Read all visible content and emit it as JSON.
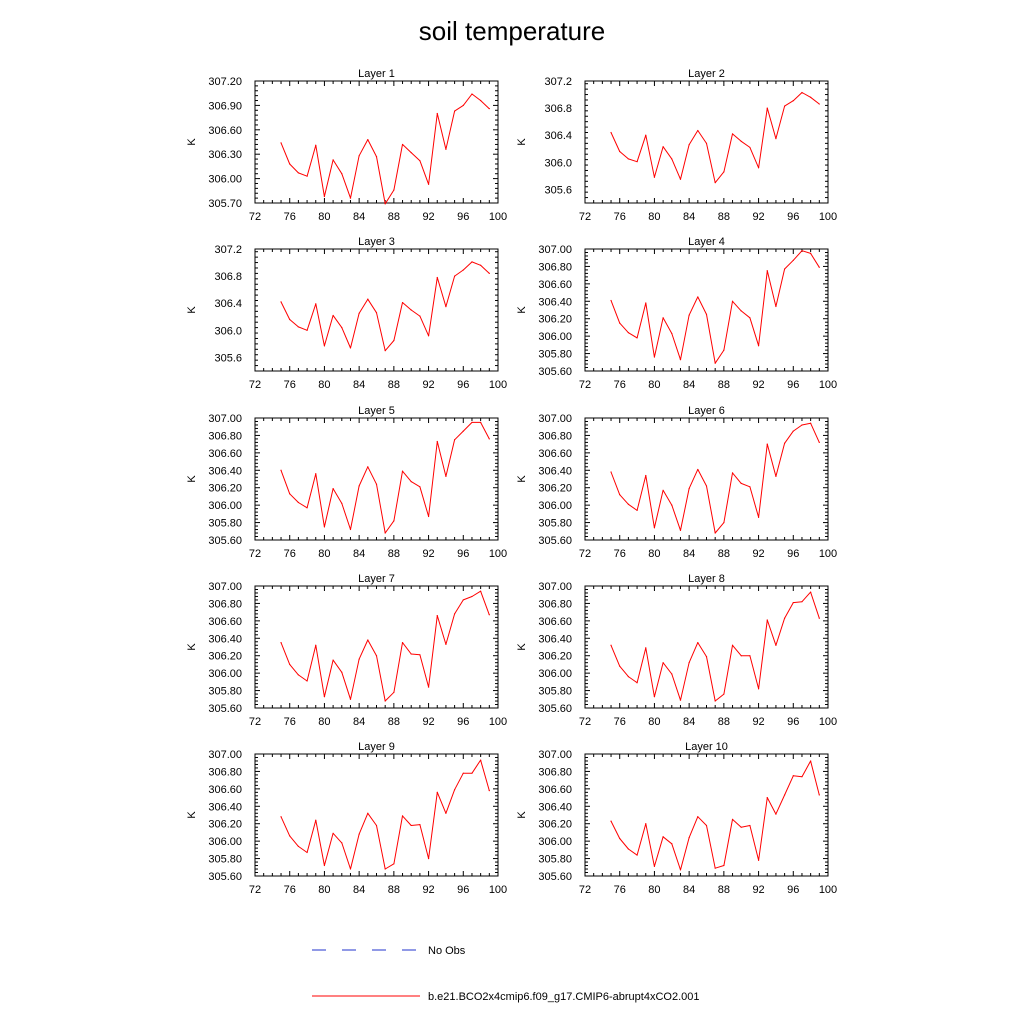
{
  "title": "soil temperature",
  "chart_data": [
    {
      "type": "line",
      "title": "Layer 1",
      "ylabel": "K",
      "xlim": [
        72,
        100
      ],
      "ylim": [
        305.7,
        307.2
      ],
      "yticks": [
        "305.70",
        "306.00",
        "306.30",
        "306.60",
        "306.90",
        "307.20"
      ],
      "xticks": [
        "72",
        "76",
        "80",
        "84",
        "88",
        "92",
        "96",
        "100"
      ],
      "series": [
        {
          "name": "b.e21.BCO2x4cmip6.f09_g17.CMIP6-abrupt4xCO2.001",
          "color": "#ff0000",
          "x": [
            75,
            76,
            77,
            78,
            79,
            80,
            81,
            82,
            83,
            84,
            85,
            86,
            87,
            88,
            89,
            90,
            91,
            92,
            93,
            94,
            95,
            96,
            97,
            98,
            99
          ],
          "y": [
            306.44,
            306.18,
            306.07,
            306.03,
            306.41,
            305.78,
            306.23,
            306.06,
            305.76,
            306.28,
            306.48,
            306.27,
            305.69,
            305.86,
            306.42,
            306.32,
            306.22,
            305.93,
            306.8,
            306.36,
            306.83,
            306.9,
            307.04,
            306.96,
            306.86
          ]
        }
      ]
    },
    {
      "type": "line",
      "title": "Layer 2",
      "ylabel": "K",
      "xlim": [
        72,
        100
      ],
      "ylim": [
        305.4,
        307.2
      ],
      "yticks": [
        "305.6",
        "306.0",
        "306.4",
        "306.8",
        "307.2"
      ],
      "xticks": [
        "72",
        "76",
        "80",
        "84",
        "88",
        "92",
        "96",
        "100"
      ],
      "series": [
        {
          "name": "b.e21.BCO2x4cmip6.f09_g17.CMIP6-abrupt4xCO2.001",
          "color": "#ff0000",
          "x": [
            75,
            76,
            77,
            78,
            79,
            80,
            81,
            82,
            83,
            84,
            85,
            86,
            87,
            88,
            89,
            90,
            91,
            92,
            93,
            94,
            95,
            96,
            97,
            98,
            99
          ],
          "y": [
            306.44,
            306.16,
            306.05,
            306.01,
            306.4,
            305.78,
            306.23,
            306.05,
            305.75,
            306.26,
            306.47,
            306.28,
            305.7,
            305.86,
            306.42,
            306.31,
            306.22,
            305.92,
            306.8,
            306.35,
            306.83,
            306.91,
            307.03,
            306.96,
            306.86
          ]
        }
      ]
    },
    {
      "type": "line",
      "title": "Layer 3",
      "ylabel": "K",
      "xlim": [
        72,
        100
      ],
      "ylim": [
        305.4,
        307.2
      ],
      "yticks": [
        "305.6",
        "306.0",
        "306.4",
        "306.8",
        "307.2"
      ],
      "xticks": [
        "72",
        "76",
        "80",
        "84",
        "88",
        "92",
        "96",
        "100"
      ],
      "series": [
        {
          "name": "b.e21.BCO2x4cmip6.f09_g17.CMIP6-abrupt4xCO2.001",
          "color": "#ff0000",
          "x": [
            75,
            76,
            77,
            78,
            79,
            80,
            81,
            82,
            83,
            84,
            85,
            86,
            87,
            88,
            89,
            90,
            91,
            92,
            93,
            94,
            95,
            96,
            97,
            98,
            99
          ],
          "y": [
            306.42,
            306.16,
            306.05,
            306.0,
            306.39,
            305.77,
            306.22,
            306.04,
            305.74,
            306.25,
            306.46,
            306.26,
            305.7,
            305.85,
            306.41,
            306.3,
            306.21,
            305.92,
            306.78,
            306.35,
            306.8,
            306.89,
            307.01,
            306.96,
            306.84
          ]
        }
      ]
    },
    {
      "type": "line",
      "title": "Layer 4",
      "ylabel": "K",
      "xlim": [
        72,
        100
      ],
      "ylim": [
        305.6,
        307.0
      ],
      "yticks": [
        "305.60",
        "305.80",
        "306.00",
        "306.20",
        "306.40",
        "306.60",
        "306.80",
        "307.00"
      ],
      "xticks": [
        "72",
        "76",
        "80",
        "84",
        "88",
        "92",
        "96",
        "100"
      ],
      "series": [
        {
          "name": "b.e21.BCO2x4cmip6.f09_g17.CMIP6-abrupt4xCO2.001",
          "color": "#ff0000",
          "x": [
            75,
            76,
            77,
            78,
            79,
            80,
            81,
            82,
            83,
            84,
            85,
            86,
            87,
            88,
            89,
            90,
            91,
            92,
            93,
            94,
            95,
            96,
            97,
            98,
            99
          ],
          "y": [
            306.41,
            306.15,
            306.04,
            305.98,
            306.38,
            305.76,
            306.21,
            306.03,
            305.73,
            306.24,
            306.45,
            306.25,
            305.69,
            305.84,
            306.4,
            306.29,
            306.21,
            305.89,
            306.75,
            306.34,
            306.77,
            306.87,
            306.98,
            306.95,
            306.79
          ]
        }
      ]
    },
    {
      "type": "line",
      "title": "Layer 5",
      "ylabel": "K",
      "xlim": [
        72,
        100
      ],
      "ylim": [
        305.6,
        307.0
      ],
      "yticks": [
        "305.60",
        "305.80",
        "306.00",
        "306.20",
        "306.40",
        "306.60",
        "306.80",
        "307.00"
      ],
      "xticks": [
        "72",
        "76",
        "80",
        "84",
        "88",
        "92",
        "96",
        "100"
      ],
      "series": [
        {
          "name": "b.e21.BCO2x4cmip6.f09_g17.CMIP6-abrupt4xCO2.001",
          "color": "#ff0000",
          "x": [
            75,
            76,
            77,
            78,
            79,
            80,
            81,
            82,
            83,
            84,
            85,
            86,
            87,
            88,
            89,
            90,
            91,
            92,
            93,
            94,
            95,
            96,
            97,
            98,
            99
          ],
          "y": [
            306.4,
            306.13,
            306.03,
            305.97,
            306.36,
            305.75,
            306.19,
            306.02,
            305.72,
            306.22,
            306.44,
            306.24,
            305.68,
            305.82,
            306.39,
            306.27,
            306.21,
            305.87,
            306.73,
            306.33,
            306.75,
            306.85,
            306.95,
            306.95,
            306.76
          ]
        }
      ]
    },
    {
      "type": "line",
      "title": "Layer 6",
      "ylabel": "K",
      "xlim": [
        72,
        100
      ],
      "ylim": [
        305.6,
        307.0
      ],
      "yticks": [
        "305.60",
        "305.80",
        "306.00",
        "306.20",
        "306.40",
        "306.60",
        "306.80",
        "307.00"
      ],
      "xticks": [
        "72",
        "76",
        "80",
        "84",
        "88",
        "92",
        "96",
        "100"
      ],
      "series": [
        {
          "name": "b.e21.BCO2x4cmip6.f09_g17.CMIP6-abrupt4xCO2.001",
          "color": "#ff0000",
          "x": [
            75,
            76,
            77,
            78,
            79,
            80,
            81,
            82,
            83,
            84,
            85,
            86,
            87,
            88,
            89,
            90,
            91,
            92,
            93,
            94,
            95,
            96,
            97,
            98,
            99
          ],
          "y": [
            306.38,
            306.12,
            306.01,
            305.94,
            306.34,
            305.74,
            306.17,
            306.0,
            305.71,
            306.19,
            306.41,
            306.22,
            305.68,
            305.8,
            306.37,
            306.25,
            306.21,
            305.86,
            306.7,
            306.33,
            306.71,
            306.85,
            306.92,
            306.94,
            306.72
          ]
        }
      ]
    },
    {
      "type": "line",
      "title": "Layer 7",
      "ylabel": "K",
      "xlim": [
        72,
        100
      ],
      "ylim": [
        305.6,
        307.0
      ],
      "yticks": [
        "305.60",
        "305.80",
        "306.00",
        "306.20",
        "306.40",
        "306.60",
        "306.80",
        "307.00"
      ],
      "xticks": [
        "72",
        "76",
        "80",
        "84",
        "88",
        "92",
        "96",
        "100"
      ],
      "series": [
        {
          "name": "b.e21.BCO2x4cmip6.f09_g17.CMIP6-abrupt4xCO2.001",
          "color": "#ff0000",
          "x": [
            75,
            76,
            77,
            78,
            79,
            80,
            81,
            82,
            83,
            84,
            85,
            86,
            87,
            88,
            89,
            90,
            91,
            92,
            93,
            94,
            95,
            96,
            97,
            98,
            99
          ],
          "y": [
            306.35,
            306.1,
            305.98,
            305.91,
            306.32,
            305.73,
            306.15,
            306.01,
            305.7,
            306.16,
            306.38,
            306.2,
            305.68,
            305.78,
            306.35,
            306.22,
            306.21,
            305.84,
            306.66,
            306.33,
            306.68,
            306.84,
            306.88,
            306.94,
            306.67
          ]
        }
      ]
    },
    {
      "type": "line",
      "title": "Layer 8",
      "ylabel": "K",
      "xlim": [
        72,
        100
      ],
      "ylim": [
        305.6,
        307.0
      ],
      "yticks": [
        "305.60",
        "305.80",
        "306.00",
        "306.20",
        "306.40",
        "306.60",
        "306.80",
        "307.00"
      ],
      "xticks": [
        "72",
        "76",
        "80",
        "84",
        "88",
        "92",
        "96",
        "100"
      ],
      "series": [
        {
          "name": "b.e21.BCO2x4cmip6.f09_g17.CMIP6-abrupt4xCO2.001",
          "color": "#ff0000",
          "x": [
            75,
            76,
            77,
            78,
            79,
            80,
            81,
            82,
            83,
            84,
            85,
            86,
            87,
            88,
            89,
            90,
            91,
            92,
            93,
            94,
            95,
            96,
            97,
            98,
            99
          ],
          "y": [
            306.32,
            306.08,
            305.96,
            305.89,
            306.29,
            305.73,
            306.12,
            305.99,
            305.69,
            306.12,
            306.35,
            306.19,
            305.68,
            305.76,
            306.32,
            306.2,
            306.2,
            305.82,
            306.61,
            306.32,
            306.63,
            306.81,
            306.82,
            306.93,
            306.63
          ]
        }
      ]
    },
    {
      "type": "line",
      "title": "Layer 9",
      "ylabel": "K",
      "xlim": [
        72,
        100
      ],
      "ylim": [
        305.6,
        307.0
      ],
      "yticks": [
        "305.60",
        "305.80",
        "306.00",
        "306.20",
        "306.40",
        "306.60",
        "306.80",
        "307.00"
      ],
      "xticks": [
        "72",
        "76",
        "80",
        "84",
        "88",
        "92",
        "96",
        "100"
      ],
      "series": [
        {
          "name": "b.e21.BCO2x4cmip6.f09_g17.CMIP6-abrupt4xCO2.001",
          "color": "#ff0000",
          "x": [
            75,
            76,
            77,
            78,
            79,
            80,
            81,
            82,
            83,
            84,
            85,
            86,
            87,
            88,
            89,
            90,
            91,
            92,
            93,
            94,
            95,
            96,
            97,
            98,
            99
          ],
          "y": [
            306.28,
            306.06,
            305.94,
            305.87,
            306.24,
            305.72,
            306.09,
            305.98,
            305.68,
            306.08,
            306.32,
            306.18,
            305.68,
            305.74,
            306.29,
            306.18,
            306.19,
            305.8,
            306.56,
            306.32,
            306.59,
            306.78,
            306.78,
            306.93,
            306.58
          ]
        }
      ]
    },
    {
      "type": "line",
      "title": "Layer 10",
      "ylabel": "K",
      "xlim": [
        72,
        100
      ],
      "ylim": [
        305.6,
        307.0
      ],
      "yticks": [
        "305.60",
        "305.80",
        "306.00",
        "306.20",
        "306.40",
        "306.60",
        "306.80",
        "307.00"
      ],
      "xticks": [
        "72",
        "76",
        "80",
        "84",
        "88",
        "92",
        "96",
        "100"
      ],
      "series": [
        {
          "name": "b.e21.BCO2x4cmip6.f09_g17.CMIP6-abrupt4xCO2.001",
          "color": "#ff0000",
          "x": [
            75,
            76,
            77,
            78,
            79,
            80,
            81,
            82,
            83,
            84,
            85,
            86,
            87,
            88,
            89,
            90,
            91,
            92,
            93,
            94,
            95,
            96,
            97,
            98,
            99
          ],
          "y": [
            306.23,
            306.03,
            305.91,
            305.84,
            306.2,
            305.71,
            306.05,
            305.97,
            305.67,
            306.04,
            306.28,
            306.18,
            305.69,
            305.72,
            306.25,
            306.16,
            306.18,
            305.78,
            306.5,
            306.31,
            306.53,
            306.75,
            306.74,
            306.92,
            306.53
          ]
        }
      ]
    }
  ],
  "legend": [
    {
      "label": "No Obs",
      "color": "#2233cc",
      "dash": "dashed"
    },
    {
      "label": "b.e21.BCO2x4cmip6.f09_g17.CMIP6-abrupt4xCO2.001",
      "color": "#ff0000",
      "dash": "solid"
    }
  ]
}
